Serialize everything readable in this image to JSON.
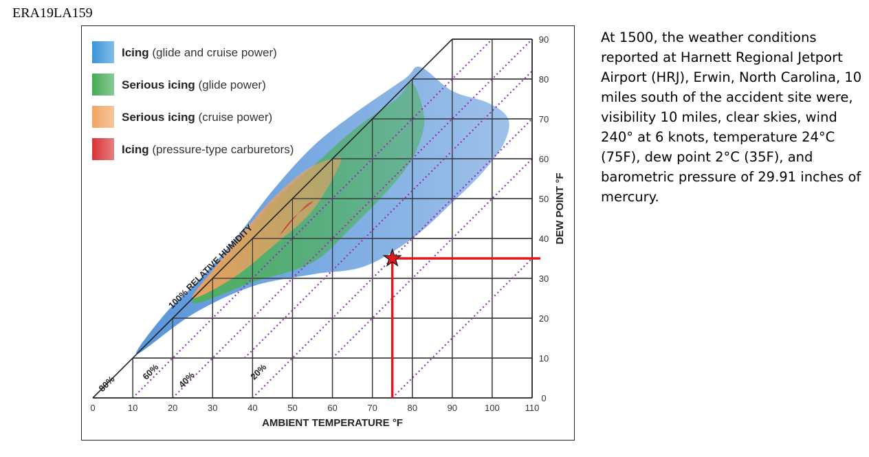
{
  "case_id": "ERA19LA159",
  "weather_text": "At 1500, the weather conditions reported at Harnett Regional Jetport Airport (HRJ), Erwin, North Carolina, 10 miles south of the accident site were, visibility 10 miles, clear skies, wind 240° at 6 knots, temperature 24°C (75F), dew point 2°C (35F), and barometric pressure of 29.91 inches of mercury.",
  "chart_data": {
    "type": "area",
    "xlabel": "AMBIENT TEMPERATURE  °F",
    "ylabel": "DEW POINT  °F",
    "xlim": [
      0,
      110
    ],
    "ylim": [
      0,
      90
    ],
    "x_ticks": [
      "0",
      "10",
      "20",
      "30",
      "40",
      "50",
      "60",
      "70",
      "80",
      "90",
      "100",
      "110"
    ],
    "y_ticks": [
      "0",
      "10",
      "20",
      "30",
      "40",
      "50",
      "60",
      "70",
      "80",
      "90"
    ],
    "grid": true,
    "saturation_line_label": "100% RELATIVE HUMIDITY",
    "humidity_lines": [
      {
        "label": "80%",
        "x_at_zero_dewpoint": 10
      },
      {
        "label": "60%",
        "x_at_zero_dewpoint": 20
      },
      {
        "label": "40%",
        "x_at_zero_dewpoint": 40
      },
      {
        "label": "20%",
        "x_at_zero_dewpoint": 75
      }
    ],
    "legend": [
      {
        "bold": "Icing",
        "rest": " (glide and cruise power)",
        "color": "#2f8fd6"
      },
      {
        "bold": "Serious icing",
        "rest": " (glide power)",
        "color": "#3aa64a"
      },
      {
        "bold": "Serious icing",
        "rest": " (cruise power)",
        "color": "#f0a05a"
      },
      {
        "bold": "Icing",
        "rest": " (pressure-type carburetors)",
        "color": "#d7282b"
      }
    ],
    "regions": [
      {
        "name": "Icing (glide and cruise power)",
        "color": "#4f8fd8",
        "outline": [
          [
            11,
            11
          ],
          [
            25,
            21
          ],
          [
            40,
            28
          ],
          [
            55,
            31
          ],
          [
            68,
            33
          ],
          [
            80,
            40
          ],
          [
            90,
            49
          ],
          [
            98,
            57
          ],
          [
            103,
            64
          ],
          [
            104,
            70
          ],
          [
            99,
            74
          ],
          [
            90,
            77
          ],
          [
            82,
            83
          ],
          [
            78,
            80
          ],
          [
            65,
            71
          ],
          [
            55,
            63
          ],
          [
            45,
            52
          ],
          [
            35,
            39
          ],
          [
            26,
            29
          ],
          [
            18,
            21
          ]
        ]
      },
      {
        "name": "Serious icing (glide power)",
        "color": "#4db05a",
        "outline": [
          [
            25,
            24
          ],
          [
            40,
            29
          ],
          [
            55,
            34
          ],
          [
            65,
            43
          ],
          [
            72,
            50
          ],
          [
            78,
            57
          ],
          [
            81,
            62
          ],
          [
            83,
            70
          ],
          [
            80,
            79
          ],
          [
            76,
            75
          ],
          [
            65,
            67
          ],
          [
            55,
            58
          ],
          [
            45,
            49
          ],
          [
            35,
            37
          ]
        ]
      },
      {
        "name": "Serious icing (cruise power)",
        "color": "#f0a060",
        "outline": [
          [
            25,
            25
          ],
          [
            35,
            30
          ],
          [
            45,
            38
          ],
          [
            55,
            47
          ],
          [
            62,
            59
          ],
          [
            60,
            60
          ],
          [
            53,
            57
          ],
          [
            45,
            50
          ],
          [
            38,
            42
          ],
          [
            30,
            32
          ]
        ]
      },
      {
        "name": "Icing (pressure-type carburetors)",
        "color": "#d42428",
        "outline": [
          [
            47,
            41
          ],
          [
            53,
            48
          ],
          [
            55,
            49
          ],
          [
            50,
            45
          ]
        ]
      }
    ],
    "marked_point": {
      "x": 75,
      "y": 35
    }
  }
}
